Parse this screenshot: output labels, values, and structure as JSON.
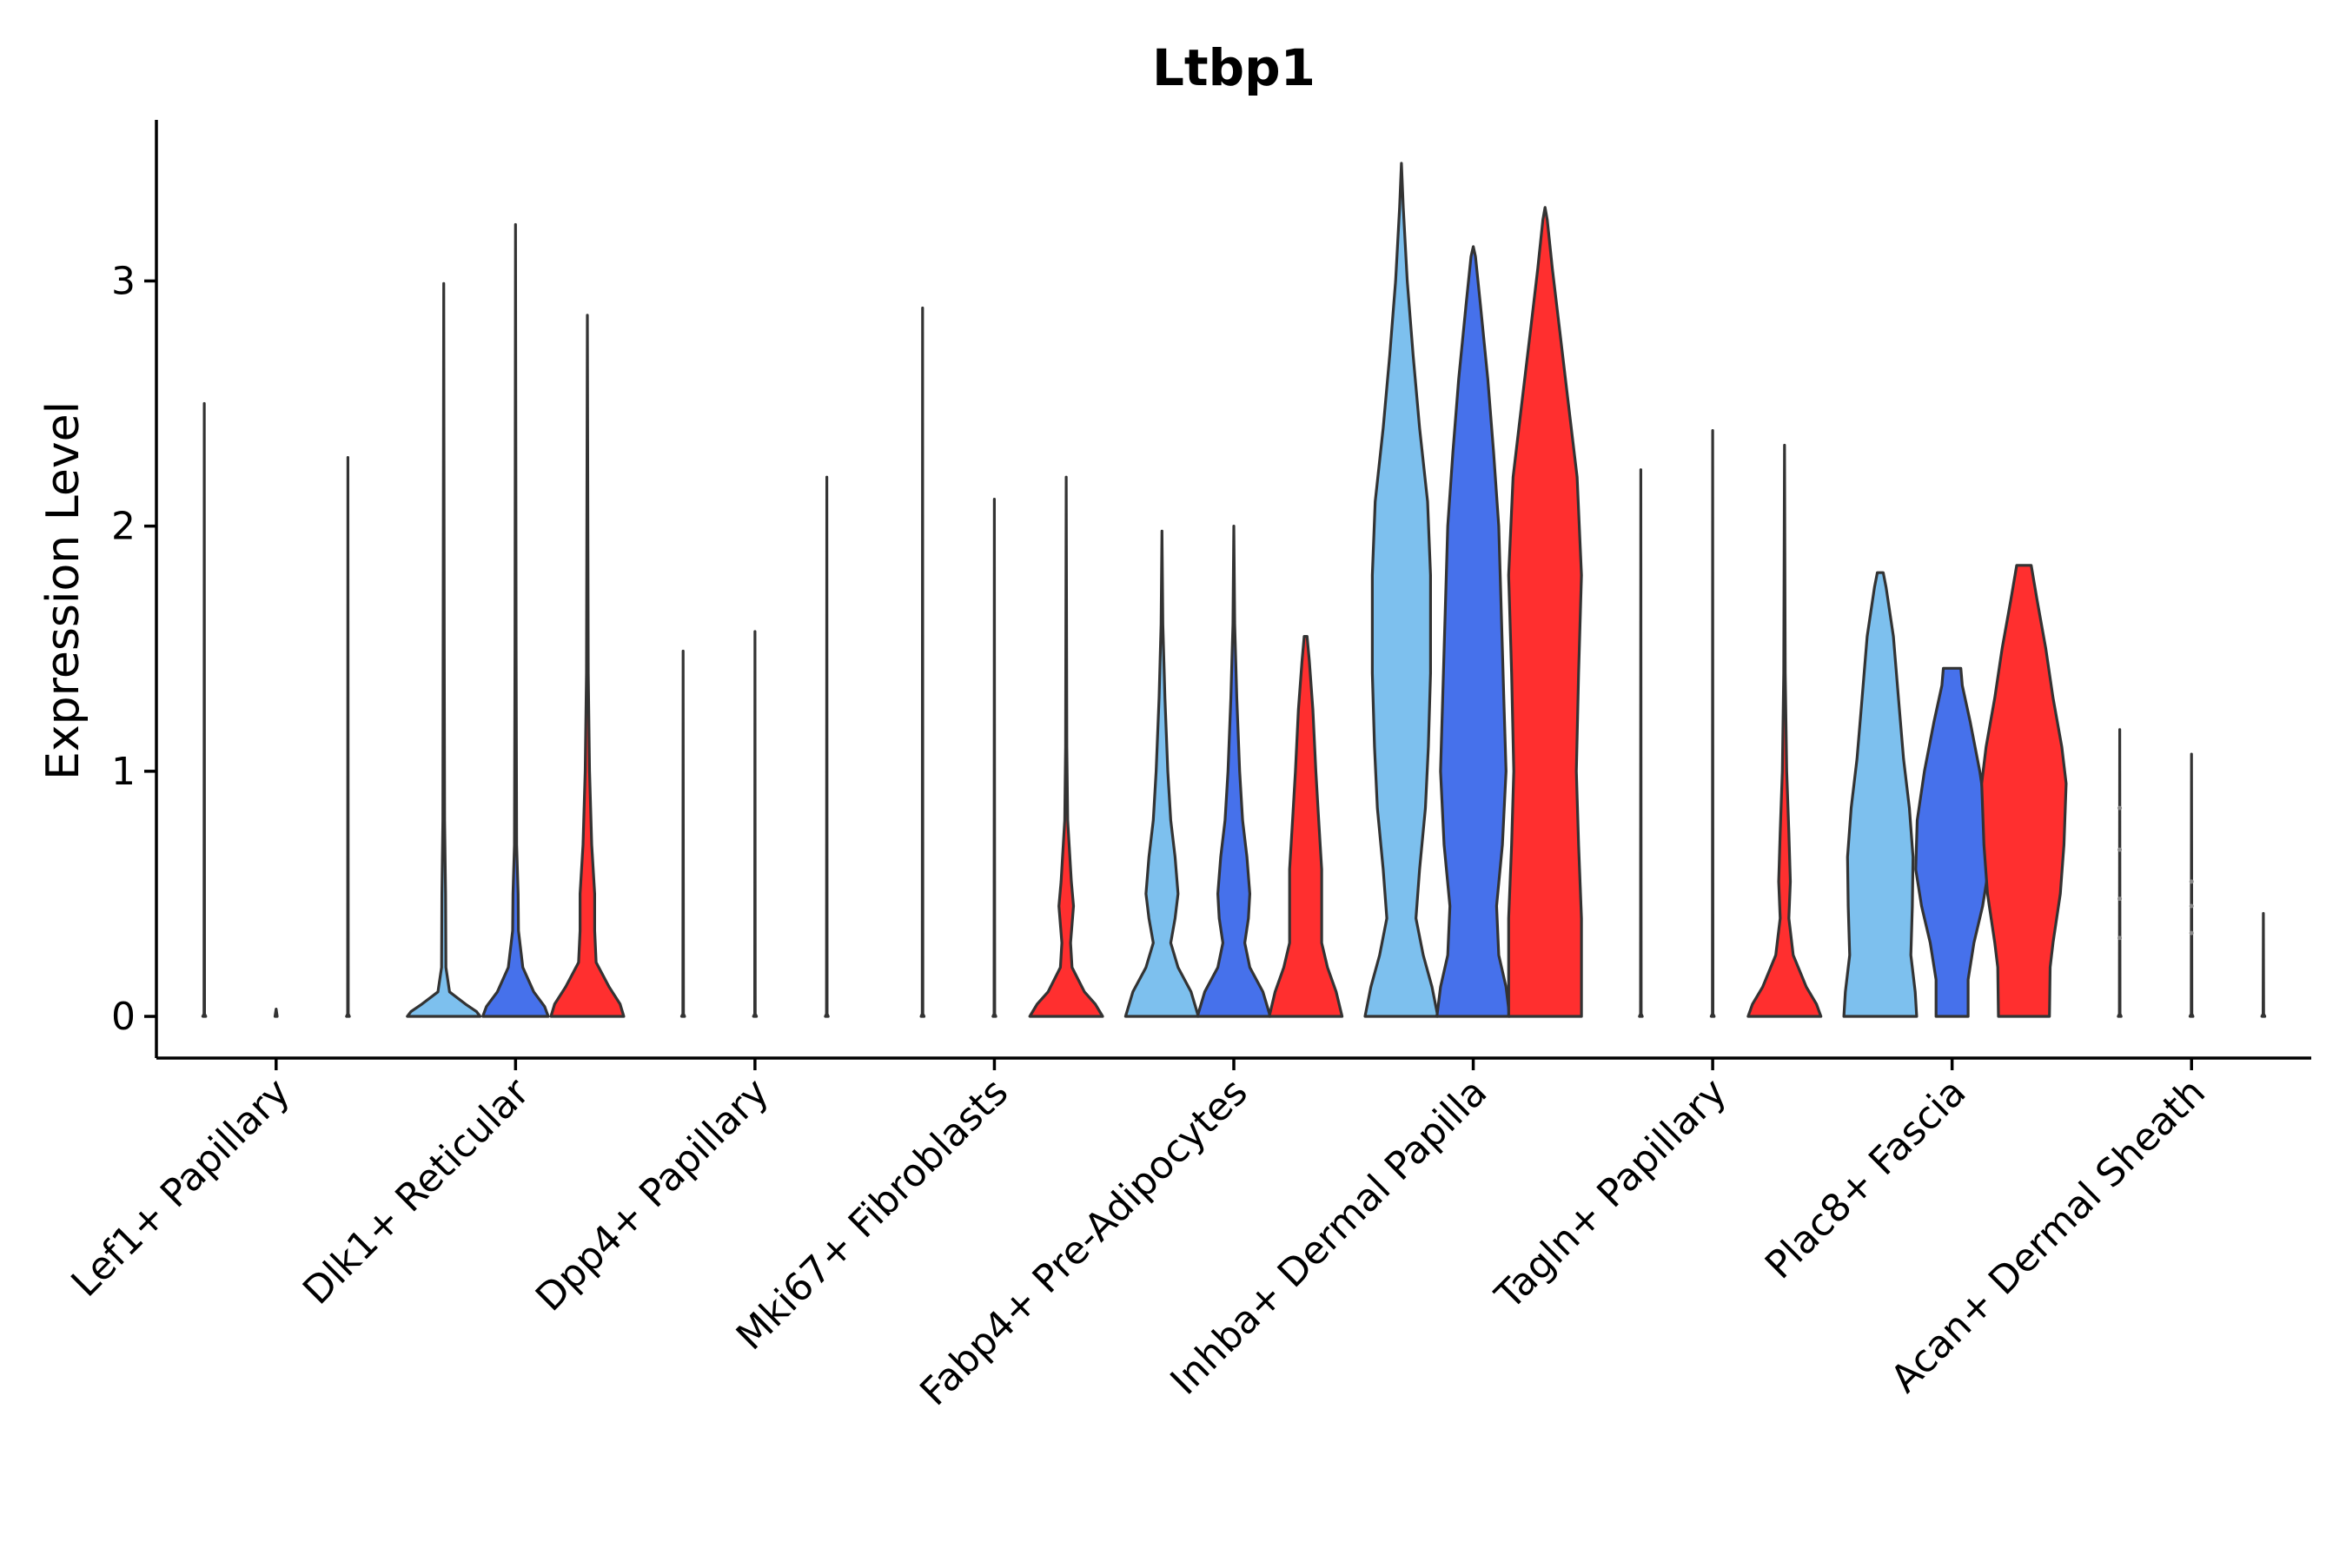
{
  "chart_data": {
    "type": "violin",
    "title": "Ltbp1",
    "ylabel": "Expression Level",
    "xlabel": "",
    "ylim": [
      -0.17,
      3.65
    ],
    "yticks": [
      0,
      1,
      2,
      3
    ],
    "ytick_labels": [
      "0",
      "1",
      "2",
      "3"
    ],
    "categories": [
      "Lef1+ Papillary",
      "Dlk1+ Reticular",
      "Dpp4+ Papillary",
      "Mki67+ Fibroblasts",
      "Fabp4+ Pre-Adipocytes",
      "Inhba+ Dermal Papilla",
      "Tagln+ Papillary",
      "Plac8+ Fascia",
      "Acan+ Dermal Sheath"
    ],
    "split_colors": [
      "#7DC0EE",
      "#4671EB",
      "#FF2F2F"
    ],
    "violins": [
      {
        "category": 0,
        "split": 0,
        "max": 2.5,
        "profile": [
          [
            0,
            0.02
          ],
          [
            0.01,
            0.004
          ],
          [
            2.5,
            0
          ]
        ]
      },
      {
        "category": 0,
        "split": 1,
        "max": 0.03,
        "profile": [
          [
            0,
            0.015
          ],
          [
            0.03,
            0
          ]
        ]
      },
      {
        "category": 0,
        "split": 2,
        "max": 2.28,
        "profile": [
          [
            0,
            0.02
          ],
          [
            0.01,
            0.004
          ],
          [
            2.28,
            0
          ]
        ]
      },
      {
        "category": 1,
        "split": 0,
        "max": 2.99,
        "profile": [
          [
            0,
            0.5
          ],
          [
            0.02,
            0.45
          ],
          [
            0.05,
            0.3
          ],
          [
            0.1,
            0.08
          ],
          [
            0.2,
            0.03
          ],
          [
            0.5,
            0.025
          ],
          [
            0.8,
            0.012
          ],
          [
            1.5,
            0.008
          ],
          [
            2.99,
            0
          ]
        ]
      },
      {
        "category": 1,
        "split": 1,
        "max": 3.23,
        "profile": [
          [
            0,
            0.45
          ],
          [
            0.04,
            0.4
          ],
          [
            0.1,
            0.25
          ],
          [
            0.2,
            0.1
          ],
          [
            0.35,
            0.04
          ],
          [
            0.5,
            0.035
          ],
          [
            0.7,
            0.015
          ],
          [
            1.5,
            0.008
          ],
          [
            3.23,
            0
          ]
        ]
      },
      {
        "category": 1,
        "split": 2,
        "max": 2.86,
        "profile": [
          [
            0,
            0.5
          ],
          [
            0.05,
            0.45
          ],
          [
            0.12,
            0.3
          ],
          [
            0.22,
            0.12
          ],
          [
            0.35,
            0.1
          ],
          [
            0.5,
            0.1
          ],
          [
            0.7,
            0.06
          ],
          [
            1.0,
            0.03
          ],
          [
            1.4,
            0.012
          ],
          [
            2.86,
            0
          ]
        ]
      },
      {
        "category": 2,
        "split": 0,
        "max": 1.49,
        "profile": [
          [
            0,
            0.02
          ],
          [
            0.01,
            0.004
          ],
          [
            1.49,
            0
          ]
        ]
      },
      {
        "category": 2,
        "split": 1,
        "max": 1.57,
        "profile": [
          [
            0,
            0.02
          ],
          [
            0.01,
            0.004
          ],
          [
            1.57,
            0
          ]
        ]
      },
      {
        "category": 2,
        "split": 2,
        "max": 2.2,
        "profile": [
          [
            0,
            0.02
          ],
          [
            0.01,
            0.004
          ],
          [
            2.2,
            0
          ]
        ]
      },
      {
        "category": 3,
        "split": 0,
        "max": 2.89,
        "profile": [
          [
            0,
            0.02
          ],
          [
            0.01,
            0.004
          ],
          [
            2.89,
            0
          ]
        ]
      },
      {
        "category": 3,
        "split": 1,
        "max": 2.11,
        "profile": [
          [
            0,
            0.02
          ],
          [
            0.01,
            0.004
          ],
          [
            2.11,
            0
          ]
        ]
      },
      {
        "category": 3,
        "split": 2,
        "max": 2.2,
        "profile": [
          [
            0,
            0.5
          ],
          [
            0.05,
            0.4
          ],
          [
            0.1,
            0.25
          ],
          [
            0.2,
            0.08
          ],
          [
            0.3,
            0.06
          ],
          [
            0.45,
            0.1
          ],
          [
            0.55,
            0.07
          ],
          [
            0.8,
            0.02
          ],
          [
            1.1,
            0.008
          ],
          [
            2.2,
            0
          ]
        ]
      },
      {
        "category": 4,
        "split": 0,
        "max": 1.98,
        "profile": [
          [
            0,
            0.5
          ],
          [
            0.1,
            0.4
          ],
          [
            0.2,
            0.22
          ],
          [
            0.3,
            0.12
          ],
          [
            0.4,
            0.18
          ],
          [
            0.5,
            0.22
          ],
          [
            0.65,
            0.18
          ],
          [
            0.8,
            0.12
          ],
          [
            1.0,
            0.08
          ],
          [
            1.3,
            0.04
          ],
          [
            1.6,
            0.012
          ],
          [
            1.98,
            0
          ]
        ]
      },
      {
        "category": 4,
        "split": 1,
        "max": 2.0,
        "profile": [
          [
            0,
            0.5
          ],
          [
            0.1,
            0.4
          ],
          [
            0.2,
            0.22
          ],
          [
            0.3,
            0.15
          ],
          [
            0.4,
            0.2
          ],
          [
            0.5,
            0.22
          ],
          [
            0.65,
            0.18
          ],
          [
            0.8,
            0.12
          ],
          [
            1.0,
            0.08
          ],
          [
            1.3,
            0.04
          ],
          [
            1.6,
            0.012
          ],
          [
            2.0,
            0
          ]
        ]
      },
      {
        "category": 4,
        "split": 2,
        "max": 1.55,
        "profile": [
          [
            0,
            0.5
          ],
          [
            0.1,
            0.42
          ],
          [
            0.2,
            0.3
          ],
          [
            0.3,
            0.22
          ],
          [
            0.45,
            0.22
          ],
          [
            0.6,
            0.22
          ],
          [
            0.8,
            0.18
          ],
          [
            1.0,
            0.14
          ],
          [
            1.25,
            0.1
          ],
          [
            1.45,
            0.05
          ],
          [
            1.55,
            0.02
          ]
        ]
      },
      {
        "category": 5,
        "split": 0,
        "max": 3.48,
        "profile": [
          [
            0,
            0.5
          ],
          [
            0.12,
            0.42
          ],
          [
            0.25,
            0.3
          ],
          [
            0.4,
            0.2
          ],
          [
            0.6,
            0.25
          ],
          [
            0.85,
            0.33
          ],
          [
            1.1,
            0.37
          ],
          [
            1.4,
            0.4
          ],
          [
            1.8,
            0.4
          ],
          [
            2.1,
            0.36
          ],
          [
            2.4,
            0.25
          ],
          [
            2.7,
            0.16
          ],
          [
            3.0,
            0.08
          ],
          [
            3.3,
            0.025
          ],
          [
            3.48,
            0
          ]
        ]
      },
      {
        "category": 5,
        "split": 1,
        "max": 3.14,
        "profile": [
          [
            0,
            0.5
          ],
          [
            0.12,
            0.45
          ],
          [
            0.25,
            0.35
          ],
          [
            0.45,
            0.32
          ],
          [
            0.7,
            0.4
          ],
          [
            1.0,
            0.45
          ],
          [
            1.3,
            0.42
          ],
          [
            1.7,
            0.38
          ],
          [
            2.0,
            0.35
          ],
          [
            2.3,
            0.28
          ],
          [
            2.6,
            0.2
          ],
          [
            2.9,
            0.1
          ],
          [
            3.1,
            0.03
          ],
          [
            3.14,
            0
          ]
        ]
      },
      {
        "category": 5,
        "split": 2,
        "max": 3.3,
        "profile": [
          [
            0,
            0.5
          ],
          [
            0.2,
            0.5
          ],
          [
            0.4,
            0.5
          ],
          [
            0.7,
            0.46
          ],
          [
            1.0,
            0.43
          ],
          [
            1.4,
            0.46
          ],
          [
            1.8,
            0.5
          ],
          [
            2.2,
            0.44
          ],
          [
            2.5,
            0.32
          ],
          [
            2.8,
            0.2
          ],
          [
            3.05,
            0.1
          ],
          [
            3.25,
            0.03
          ],
          [
            3.3,
            0
          ]
        ]
      },
      {
        "category": 6,
        "split": 0,
        "max": 2.23,
        "profile": [
          [
            0,
            0.02
          ],
          [
            0.01,
            0.004
          ],
          [
            2.23,
            0
          ]
        ]
      },
      {
        "category": 6,
        "split": 1,
        "max": 2.39,
        "profile": [
          [
            0,
            0.02
          ],
          [
            0.01,
            0.004
          ],
          [
            2.39,
            0
          ]
        ]
      },
      {
        "category": 6,
        "split": 2,
        "max": 2.33,
        "profile": [
          [
            0,
            0.5
          ],
          [
            0.05,
            0.44
          ],
          [
            0.12,
            0.3
          ],
          [
            0.25,
            0.12
          ],
          [
            0.4,
            0.06
          ],
          [
            0.55,
            0.08
          ],
          [
            0.75,
            0.06
          ],
          [
            1.0,
            0.03
          ],
          [
            1.4,
            0.01
          ],
          [
            2.33,
            0
          ]
        ]
      },
      {
        "category": 7,
        "split": 0,
        "max": 1.81,
        "profile": [
          [
            0,
            0.5
          ],
          [
            0.1,
            0.48
          ],
          [
            0.25,
            0.42
          ],
          [
            0.45,
            0.44
          ],
          [
            0.65,
            0.45
          ],
          [
            0.85,
            0.4
          ],
          [
            1.05,
            0.32
          ],
          [
            1.3,
            0.25
          ],
          [
            1.55,
            0.18
          ],
          [
            1.75,
            0.08
          ],
          [
            1.81,
            0.04
          ]
        ]
      },
      {
        "category": 7,
        "split": 1,
        "max": 1.42,
        "profile": [
          [
            0,
            0.22
          ],
          [
            0.15,
            0.22
          ],
          [
            0.3,
            0.3
          ],
          [
            0.45,
            0.42
          ],
          [
            0.6,
            0.5
          ],
          [
            0.8,
            0.48
          ],
          [
            1.0,
            0.38
          ],
          [
            1.2,
            0.25
          ],
          [
            1.35,
            0.14
          ],
          [
            1.42,
            0.12
          ]
        ]
      },
      {
        "category": 7,
        "split": 2,
        "max": 1.84,
        "profile": [
          [
            0,
            0.35
          ],
          [
            0.2,
            0.36
          ],
          [
            0.3,
            0.4
          ],
          [
            0.5,
            0.5
          ],
          [
            0.7,
            0.55
          ],
          [
            0.95,
            0.58
          ],
          [
            1.1,
            0.52
          ],
          [
            1.3,
            0.4
          ],
          [
            1.5,
            0.3
          ],
          [
            1.7,
            0.18
          ],
          [
            1.84,
            0.1
          ]
        ]
      },
      {
        "category": 8,
        "split": 0,
        "max": 1.17,
        "profile": [
          [
            0,
            0.02
          ],
          [
            0.01,
            0.004
          ],
          [
            1.17,
            0
          ]
        ]
      },
      {
        "category": 8,
        "split": 1,
        "max": 1.07,
        "profile": [
          [
            0,
            0.02
          ],
          [
            0.01,
            0.004
          ],
          [
            1.07,
            0
          ]
        ]
      },
      {
        "category": 8,
        "split": 2,
        "max": 0.42,
        "profile": [
          [
            0,
            0.02
          ],
          [
            0.01,
            0.004
          ],
          [
            0.42,
            0
          ]
        ]
      }
    ],
    "scatter_points": [
      {
        "category": 8,
        "split": 0,
        "values": [
          0.32,
          0.48,
          0.68,
          0.85
        ]
      },
      {
        "category": 8,
        "split": 1,
        "values": [
          0.34,
          0.45,
          0.55
        ]
      }
    ]
  }
}
